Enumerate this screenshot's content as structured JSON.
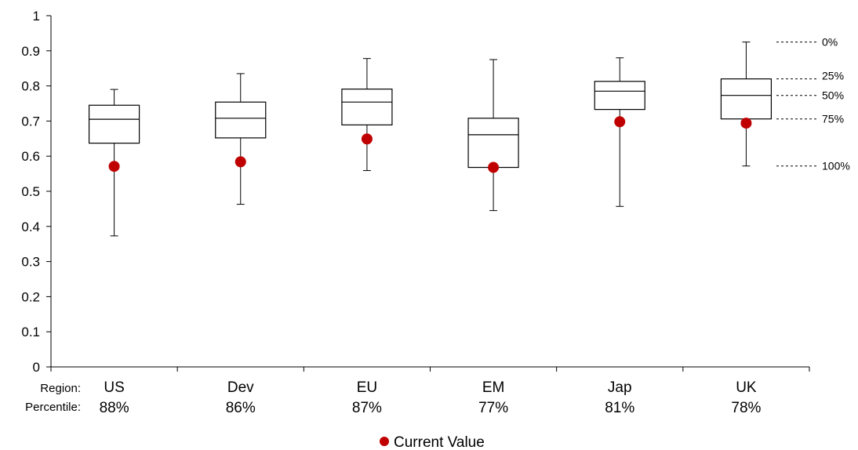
{
  "chart_data": {
    "type": "box",
    "ylim": [
      0,
      1
    ],
    "yticks": [
      "0",
      "0.1",
      "0.2",
      "0.3",
      "0.4",
      "0.5",
      "0.6",
      "0.7",
      "0.8",
      "0.9",
      "1"
    ],
    "row_labels": {
      "region": "Region:",
      "percentile": "Percentile:"
    },
    "categories": [
      "US",
      "Dev",
      "EU",
      "EM",
      "Jap",
      "UK"
    ],
    "percentiles": [
      "88%",
      "86%",
      "87%",
      "77%",
      "81%",
      "78%"
    ],
    "boxes": [
      {
        "max": 0.79,
        "q3": 0.745,
        "median": 0.705,
        "q1": 0.637,
        "min": 0.373,
        "current": 0.571
      },
      {
        "max": 0.835,
        "q3": 0.754,
        "median": 0.708,
        "q1": 0.652,
        "min": 0.463,
        "current": 0.584
      },
      {
        "max": 0.878,
        "q3": 0.791,
        "median": 0.754,
        "q1": 0.689,
        "min": 0.559,
        "current": 0.649
      },
      {
        "max": 0.875,
        "q3": 0.708,
        "median": 0.661,
        "q1": 0.568,
        "min": 0.445,
        "current": 0.568
      },
      {
        "max": 0.88,
        "q3": 0.813,
        "median": 0.785,
        "q1": 0.733,
        "min": 0.457,
        "current": 0.698
      },
      {
        "max": 0.925,
        "q3": 0.82,
        "median": 0.773,
        "q1": 0.706,
        "min": 0.572,
        "current": 0.694
      }
    ],
    "percentile_key": [
      "0%",
      "25%",
      "50%",
      "75%",
      "100%"
    ],
    "legend": {
      "label": "Current Value",
      "color": "#c00000",
      "position": "bottom-center"
    },
    "grid": false
  }
}
